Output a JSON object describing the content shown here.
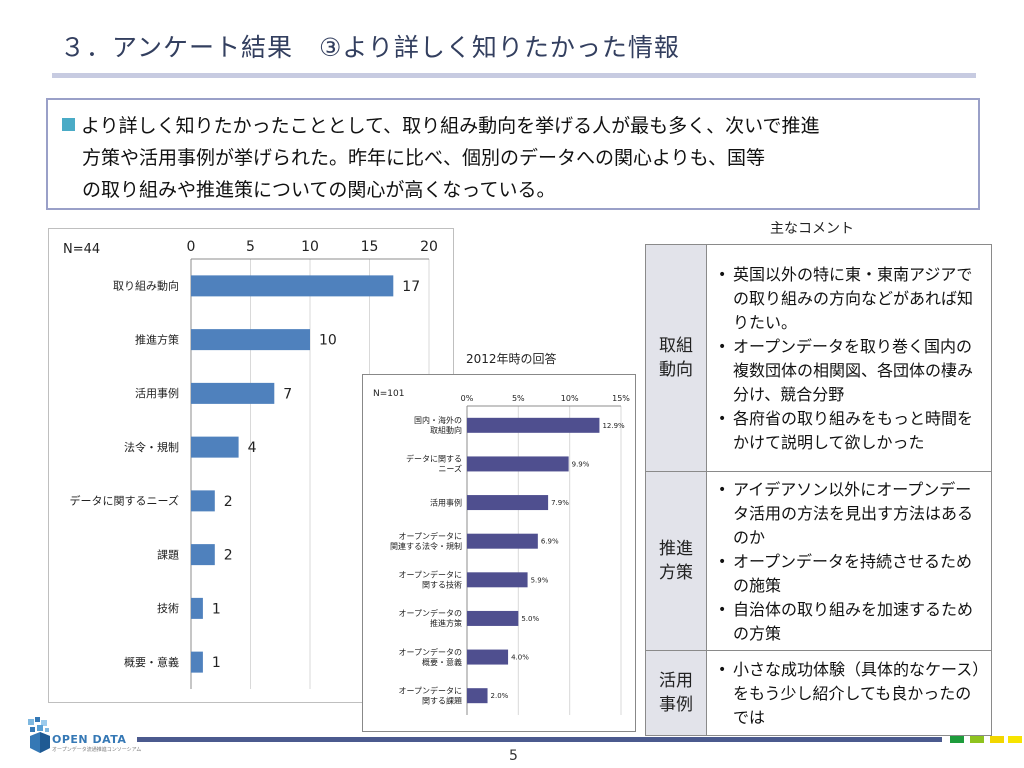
{
  "slide": {
    "title": "３．アンケート結果　③より詳しく知りたかった情報",
    "page_number": "5"
  },
  "summary": {
    "lines": [
      "より詳しく知りたかったこととして、取り組み動向を挙げる人が最も多く、次いで推進",
      "方策や活用事例が挙げられた。昨年に比べ、個別のデータへの関心よりも、国等",
      "の取り組みや推進策についての関心が高くなっている。"
    ]
  },
  "chart_data": [
    {
      "type": "bar",
      "orientation": "horizontal",
      "annotation": "N=44",
      "categories": [
        "取り組み動向",
        "推進方策",
        "活用事例",
        "法令・規制",
        "データに関するニーズ",
        "課題",
        "技術",
        "概要・意義"
      ],
      "values": [
        17,
        10,
        7,
        4,
        2,
        2,
        1,
        1
      ],
      "value_labels": [
        "17",
        "10",
        "7",
        "4",
        "2",
        "2",
        "1",
        "1"
      ],
      "xlim": [
        0,
        20
      ],
      "ticks": [
        "0",
        "5",
        "10",
        "15",
        "20"
      ],
      "axis_position": "top",
      "grid": true,
      "legend": "none",
      "title": "",
      "xlabel": "",
      "ylabel": ""
    },
    {
      "type": "bar",
      "orientation": "horizontal",
      "caption": "2012年時の回答",
      "annotation": "N=101",
      "categories": [
        [
          "国内・海外の",
          "取組動向"
        ],
        [
          "データに関する",
          "ニーズ"
        ],
        [
          "活用事例"
        ],
        [
          "オープンデータに",
          "関連する法令・規制"
        ],
        [
          "オープンデータに",
          "関する技術"
        ],
        [
          "オープンデータの",
          "推進方策"
        ],
        [
          "オープンデータの",
          "概要・意義"
        ],
        [
          "オープンデータに",
          "関する課題"
        ]
      ],
      "values": [
        12.9,
        9.9,
        7.9,
        6.9,
        5.9,
        5.0,
        4.0,
        2.0
      ],
      "value_labels": [
        "12.9%",
        "9.9%",
        "7.9%",
        "6.9%",
        "5.9%",
        "5.0%",
        "4.0%",
        "2.0%"
      ],
      "xlim": [
        0,
        15
      ],
      "ticks": [
        "0%",
        "5%",
        "10%",
        "15%"
      ],
      "axis_position": "top",
      "grid": true,
      "legend": "none",
      "title": "",
      "xlabel": "",
      "ylabel": ""
    }
  ],
  "comments": {
    "caption": "主なコメント",
    "rows": [
      {
        "category": [
          "取組",
          "動向"
        ],
        "items": [
          "英国以外の特に東・東南アジアでの取り組みの方向などがあれば知りたい。",
          "オープンデータを取り巻く国内の複数団体の相関図、各団体の棲み分け、競合分野",
          "各府省の取り組みをもっと時間をかけて説明して欲しかった"
        ]
      },
      {
        "category": [
          "推進",
          "方策"
        ],
        "items": [
          "アイデアソン以外にオープンデータ活用の方法を見出す方法はあるのか",
          "オープンデータを持続させるための施策",
          "自治体の取り組みを加速するための方策"
        ]
      },
      {
        "category": [
          "活用",
          "事例"
        ],
        "items": [
          "小さな成功体験（具体的なケース）をもう少し紹介しても良かったのでは"
        ]
      }
    ]
  },
  "logo": {
    "text": "OPEN DATA",
    "subtext": "オープンデータ流通推進コンソーシアム"
  },
  "colors": {
    "title": "#333f5f",
    "title_rule": "#c7cbe1",
    "summary_border": "#9aa0c8",
    "summary_bullet": "#4aabc6",
    "bar_2013": "#4f81bd",
    "bar_2012": "#4f4f8f",
    "table_category_bg": "#e2e3ea",
    "footer_rule": "#4b5a8e",
    "footer_squares": [
      "#1e9c3c",
      "#8fc31f",
      "#f2d600",
      "#f7e400"
    ]
  }
}
